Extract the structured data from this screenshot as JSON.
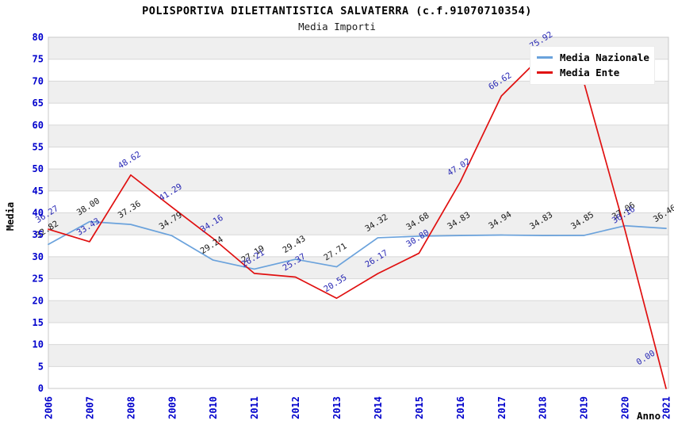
{
  "title": "POLISPORTIVA DILETTANTISTICA SALVATERRA (c.f.91070710354)",
  "subtitle": "Media Importi",
  "axes": {
    "y_title": "Media",
    "x_title": "Anno",
    "y_ticks": [
      "0",
      "5",
      "10",
      "15",
      "20",
      "25",
      "30",
      "35",
      "40",
      "45",
      "50",
      "55",
      "60",
      "65",
      "70",
      "75",
      "80"
    ],
    "x_ticks": [
      "2006",
      "2007",
      "2008",
      "2009",
      "2010",
      "2011",
      "2012",
      "2013",
      "2014",
      "2015",
      "2016",
      "2017",
      "2018",
      "2019",
      "2020",
      "2021"
    ]
  },
  "legend": {
    "items": [
      {
        "label": "Media Nazionale",
        "color": "#6aa2dc"
      },
      {
        "label": "Media Ente",
        "color": "#e01010"
      }
    ]
  },
  "colors": {
    "axis_text": "#0000cc",
    "grid_line": "#d8d8d8",
    "band_gray": "#efefef",
    "band_white": "#ffffff",
    "plot_border": "#c8c8c8",
    "nazionale_label": "#1a1a1a",
    "ente_label": "#2828b4"
  },
  "chart_data": {
    "type": "line",
    "title": "POLISPORTIVA DILETTANTISTICA SALVATERRA (c.f.91070710354)",
    "subtitle": "Media Importi",
    "xlabel": "Anno",
    "ylabel": "Media",
    "x": [
      2006,
      2007,
      2008,
      2009,
      2010,
      2011,
      2012,
      2013,
      2014,
      2015,
      2016,
      2017,
      2018,
      2019,
      2020,
      2021
    ],
    "ylim": [
      0,
      80
    ],
    "ytick_step": 5,
    "grid": "horizontal gridlines with alternating gray/white bands",
    "legend_position": "top-right",
    "series": [
      {
        "name": "Media Nazionale",
        "color": "#6aa2dc",
        "label_color": "#1a1a1a",
        "values": [
          32.82,
          38.0,
          37.36,
          34.79,
          29.24,
          27.19,
          29.43,
          27.71,
          34.32,
          34.68,
          34.83,
          34.94,
          34.83,
          34.85,
          37.06,
          36.46
        ],
        "labels": [
          "32.82",
          "38.00",
          "37.36",
          "34.79",
          "29.24",
          "27.19",
          "29.43",
          "27.71",
          "34.32",
          "34.68",
          "34.83",
          "34.94",
          "34.83",
          "34.85",
          "37.06",
          "36.46"
        ]
      },
      {
        "name": "Media Ente",
        "color": "#e01010",
        "label_color": "#2828b4",
        "values": [
          36.27,
          33.43,
          48.62,
          41.29,
          34.16,
          26.21,
          25.37,
          20.55,
          26.17,
          30.8,
          47.02,
          66.62,
          75.92,
          69.9,
          36.16,
          0.0
        ],
        "labels": [
          "36.27",
          "33.43",
          "48.62",
          "41.29",
          "34.16",
          "26.21",
          "25.37",
          "20.55",
          "26.17",
          "30.80",
          "47.02",
          "66.62",
          "75.92",
          null,
          "36.16",
          "0.00"
        ],
        "note": "2019 data label is hidden behind the legend box; value estimated from line position"
      }
    ]
  }
}
